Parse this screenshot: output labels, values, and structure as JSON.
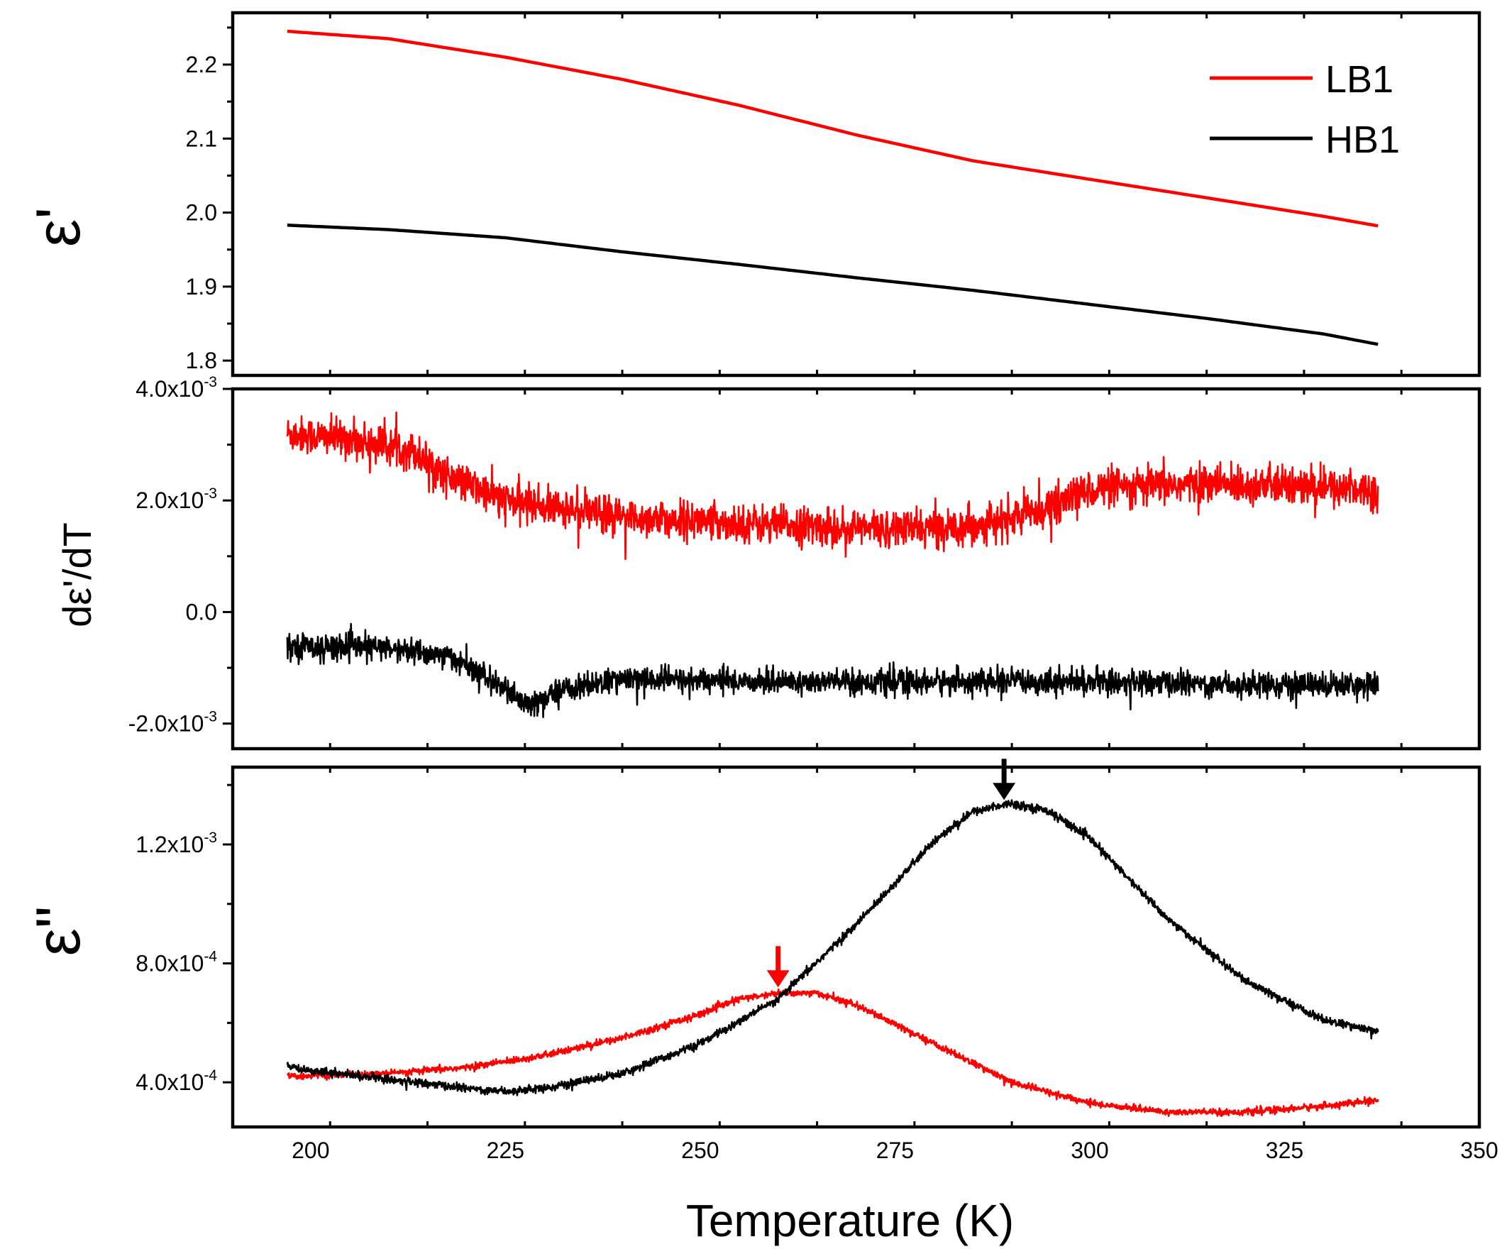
{
  "chart_data": [
    {
      "type": "line",
      "panel": "top",
      "ylabel": "ε'",
      "xlim": [
        190,
        350
      ],
      "ylim": [
        1.78,
        2.27
      ],
      "yticks": [
        "1.8",
        "1.9",
        "2.0",
        "2.1",
        "2.2"
      ],
      "yticks_values": [
        1.8,
        1.9,
        2.0,
        2.1,
        2.2
      ],
      "legend": {
        "placement": "top-right",
        "entries": [
          "LB1",
          "HB1"
        ]
      },
      "series": [
        {
          "name": "LB1",
          "color": "#ff0000",
          "x": [
            197,
            210,
            225,
            240,
            255,
            270,
            285,
            300,
            315,
            330,
            337
          ],
          "y": [
            2.245,
            2.235,
            2.21,
            2.18,
            2.145,
            2.105,
            2.07,
            2.045,
            2.02,
            1.995,
            1.982
          ]
        },
        {
          "name": "HB1",
          "color": "#000000",
          "x": [
            197,
            210,
            225,
            240,
            255,
            270,
            285,
            300,
            315,
            330,
            337
          ],
          "y": [
            1.983,
            1.977,
            1.966,
            1.947,
            1.93,
            1.912,
            1.895,
            1.876,
            1.857,
            1.836,
            1.822
          ]
        }
      ]
    },
    {
      "type": "line",
      "panel": "middle",
      "ylabel": "dε'/dT",
      "xlim": [
        190,
        350
      ],
      "ylim": [
        -0.00245,
        0.004
      ],
      "yticks": [
        {
          "mant": "-2.0x10",
          "exp": "-3"
        },
        {
          "mant": "0.0",
          "exp": ""
        },
        {
          "mant": "2.0x10",
          "exp": "-3"
        },
        {
          "mant": "4.0x10",
          "exp": "-3"
        }
      ],
      "yticks_values": [
        -0.002,
        0.0,
        0.002,
        0.004
      ],
      "noise": [
        0.0003,
        0.0002
      ],
      "series": [
        {
          "name": "LB1",
          "color": "#ff0000",
          "x": [
            197,
            205,
            213,
            218,
            225,
            240,
            255,
            270,
            280,
            288,
            295,
            300,
            315,
            337
          ],
          "y": [
            0.0032,
            0.0031,
            0.0029,
            0.0024,
            0.002,
            0.0017,
            0.0016,
            0.0015,
            0.0015,
            0.0016,
            0.0019,
            0.0022,
            0.0023,
            0.0022
          ]
        },
        {
          "name": "HB1",
          "color": "#000000",
          "x": [
            197,
            210,
            218,
            224,
            228,
            232,
            240,
            260,
            280,
            300,
            320,
            337
          ],
          "y": [
            -0.0006,
            -0.00065,
            -0.0008,
            -0.0013,
            -0.0017,
            -0.0014,
            -0.0012,
            -0.00125,
            -0.00125,
            -0.00125,
            -0.0013,
            -0.0013
          ]
        }
      ]
    },
    {
      "type": "line",
      "panel": "bottom",
      "ylabel": "ε\"",
      "xlabel": "Temperature (K)",
      "xlim": [
        190,
        350
      ],
      "ylim": [
        0.00025,
        0.00146
      ],
      "xticks": [
        200,
        225,
        250,
        275,
        300,
        325,
        350
      ],
      "yticks": [
        {
          "mant": "4.0x10",
          "exp": "-4"
        },
        {
          "mant": "8.0x10",
          "exp": "-4"
        },
        {
          "mant": "1.2x10",
          "exp": "-3"
        }
      ],
      "yticks_values": [
        0.0004,
        0.0008,
        0.0012
      ],
      "noise": [
        1e-05,
        1.2e-05
      ],
      "annotations": [
        {
          "type": "arrow",
          "color": "#ff0000",
          "x": 260,
          "y_tip": 0.00071
        },
        {
          "type": "arrow",
          "color": "#000000",
          "x": 289,
          "y_tip": 0.00134
        }
      ],
      "series": [
        {
          "name": "LB1",
          "color": "#ff0000",
          "x": [
            197,
            210,
            220,
            230,
            240,
            250,
            255,
            260,
            265,
            270,
            280,
            290,
            300,
            310,
            320,
            330,
            337
          ],
          "y": [
            0.00042,
            0.00043,
            0.00045,
            0.00049,
            0.00055,
            0.00063,
            0.00068,
            0.0007,
            0.0007,
            0.00066,
            0.00053,
            0.0004,
            0.00033,
            0.0003,
            0.0003,
            0.00032,
            0.00034
          ]
        },
        {
          "name": "HB1",
          "color": "#000000",
          "x": [
            197,
            210,
            220,
            225,
            230,
            240,
            250,
            260,
            270,
            280,
            285,
            290,
            295,
            300,
            310,
            320,
            330,
            337
          ],
          "y": [
            0.00045,
            0.00041,
            0.00038,
            0.00037,
            0.00038,
            0.00043,
            0.00053,
            0.00068,
            0.00093,
            0.00121,
            0.00131,
            0.00134,
            0.00131,
            0.00122,
            0.00095,
            0.00074,
            0.00061,
            0.00057
          ]
        }
      ]
    }
  ]
}
